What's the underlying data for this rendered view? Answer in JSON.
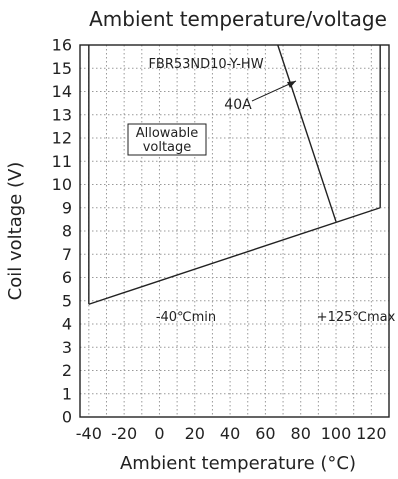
{
  "chart_data": {
    "type": "line",
    "title": "Ambient temperature/voltage",
    "xlabel": "Ambient temperature (°C)",
    "ylabel": "Coil voltage (V)",
    "xlim": [
      -45,
      130
    ],
    "ylim": [
      0,
      16
    ],
    "xticks": [
      -40,
      -20,
      0,
      20,
      40,
      60,
      80,
      100,
      120
    ],
    "yticks": [
      0,
      1,
      2,
      3,
      4,
      5,
      6,
      7,
      8,
      9,
      10,
      11,
      12,
      13,
      14,
      15,
      16
    ],
    "grid": true,
    "series": [
      {
        "id": "min-voltage",
        "x": [
          -40,
          125
        ],
        "y": [
          4.85,
          9.0
        ]
      },
      {
        "id": "max-voltage-40A",
        "x": [
          67,
          100
        ],
        "y": [
          16,
          8.4
        ]
      },
      {
        "id": "min-temp-boundary",
        "x": [
          -40,
          -40
        ],
        "y": [
          4.85,
          16
        ]
      },
      {
        "id": "max-temp-boundary",
        "x": [
          125,
          125
        ],
        "y": [
          9.0,
          16
        ]
      }
    ],
    "annotations": {
      "model": "FBR53ND10-Y-HW",
      "current": "40A",
      "region": [
        "Allowable",
        "voltage"
      ],
      "min_temp": "-40℃min",
      "max_temp": "+125℃max"
    }
  }
}
